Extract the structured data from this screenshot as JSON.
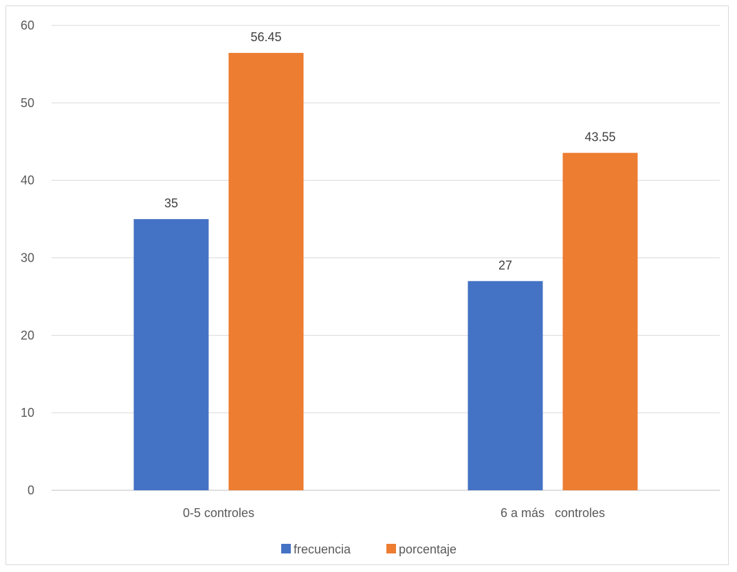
{
  "chart_data": {
    "type": "bar",
    "categories": [
      "0-5 controles",
      "6 a más   controles"
    ],
    "series": [
      {
        "name": "frecuencia",
        "values": [
          35,
          27
        ],
        "color": "#4472c4"
      },
      {
        "name": "porcentaje",
        "values": [
          56.45,
          43.55
        ],
        "color": "#ed7d31"
      }
    ],
    "data_labels": [
      [
        "35",
        "27"
      ],
      [
        "56.45",
        "43.55"
      ]
    ],
    "title": "",
    "xlabel": "",
    "ylabel": "",
    "ylim": [
      0,
      60
    ],
    "yticks": [
      0,
      10,
      20,
      30,
      40,
      50,
      60
    ],
    "grid": true,
    "legend_position": "bottom"
  }
}
